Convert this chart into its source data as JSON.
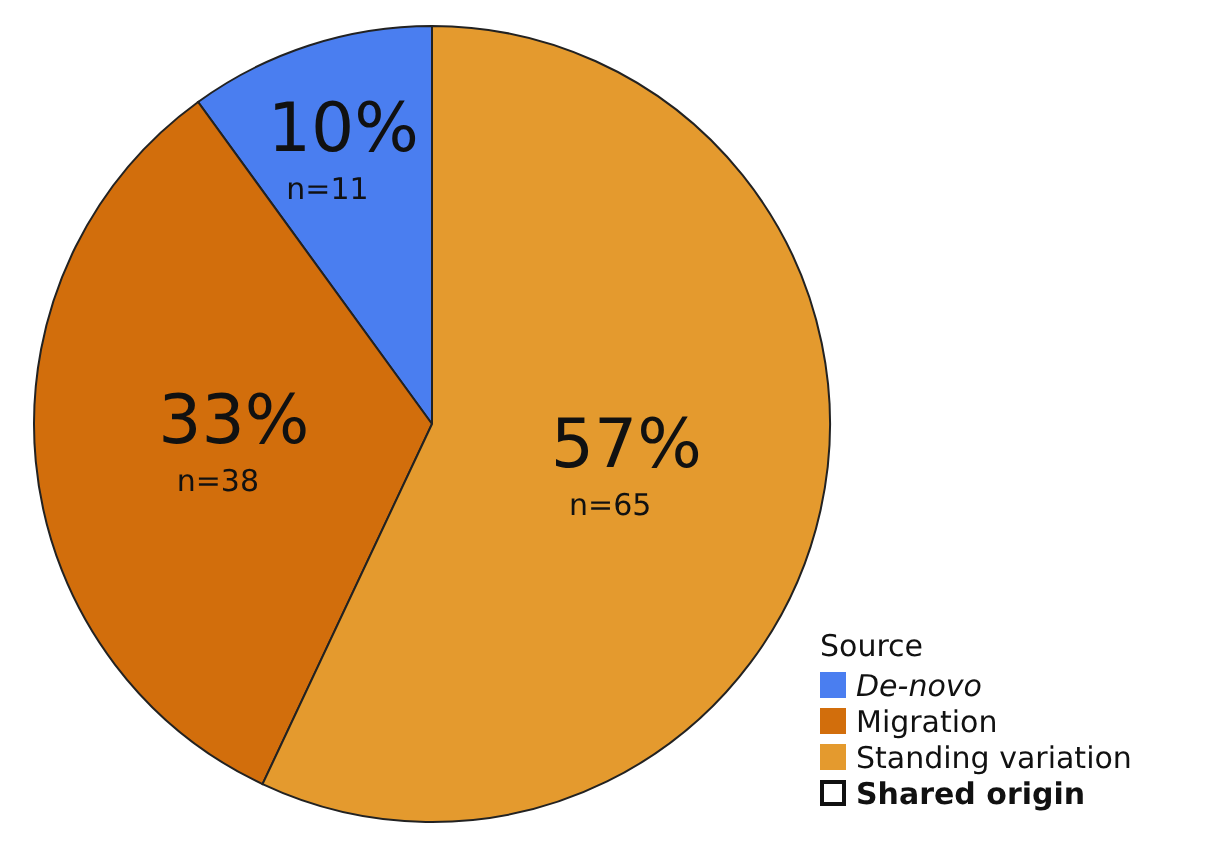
{
  "chart_data": {
    "type": "pie",
    "legend_title": "Source",
    "legend": "bottom right",
    "categories": [
      "De-novo",
      "Migration",
      "Standing variation"
    ],
    "values": [
      10,
      33,
      57
    ],
    "colors": [
      "#4a7ef0",
      "#d26e0c",
      "#e49a2e"
    ],
    "value_labels": [
      "10%\nn=11",
      "33%\nn=38",
      "57%\nn=65"
    ],
    "annotations": [
      "Shared origin"
    ]
  }
}
